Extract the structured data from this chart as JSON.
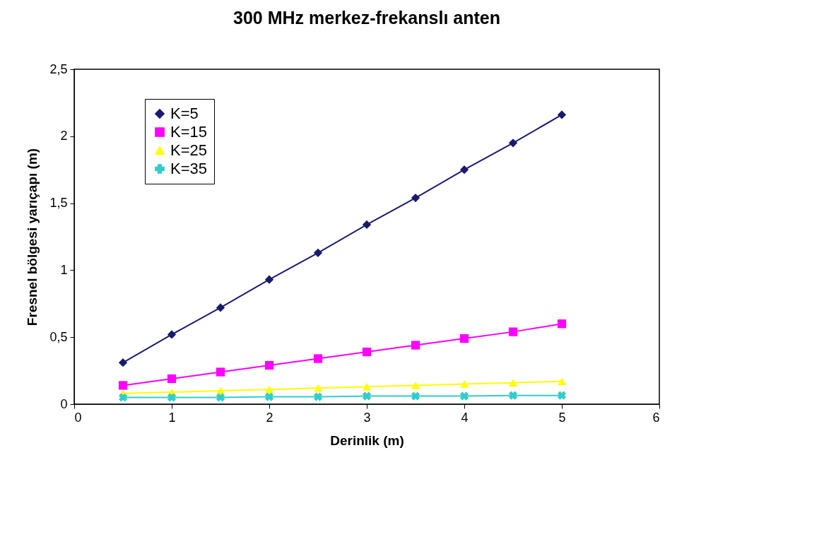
{
  "chart_data": {
    "type": "line",
    "title": "300 MHz merkez-frekanslı anten",
    "xlabel": "Derinlik (m)",
    "ylabel": "Fresnel bölgesi yarıçapı (m)",
    "x": [
      0.5,
      1,
      1.5,
      2,
      2.5,
      3,
      3.5,
      4,
      4.5,
      5
    ],
    "series": [
      {
        "name": "K=5",
        "color": "#1a1a6e",
        "marker": "diamond",
        "values": [
          0.31,
          0.52,
          0.72,
          0.93,
          1.13,
          1.34,
          1.54,
          1.75,
          1.95,
          2.16
        ]
      },
      {
        "name": "K=15",
        "color": "#ff00ff",
        "marker": "square",
        "values": [
          0.14,
          0.19,
          0.24,
          0.29,
          0.34,
          0.39,
          0.44,
          0.49,
          0.54,
          0.6
        ]
      },
      {
        "name": "K=25",
        "color": "#ffff00",
        "marker": "triangle",
        "values": [
          0.08,
          0.09,
          0.1,
          0.11,
          0.12,
          0.13,
          0.14,
          0.15,
          0.16,
          0.17
        ]
      },
      {
        "name": "K=35",
        "color": "#33cccc",
        "marker": "cross",
        "values": [
          0.05,
          0.05,
          0.05,
          0.055,
          0.055,
          0.06,
          0.06,
          0.06,
          0.065,
          0.065
        ]
      }
    ],
    "xlim": [
      0,
      6
    ],
    "xticks": [
      0,
      1,
      2,
      3,
      4,
      5,
      6
    ],
    "ylim": [
      0,
      2.5
    ],
    "yticks": [
      0,
      {
        "value": 0.5,
        "label": "0,5"
      },
      1,
      {
        "value": 1.5,
        "label": "1,5"
      },
      2,
      {
        "value": 2.5,
        "label": "2,5"
      }
    ],
    "grid": false,
    "legend": "top left"
  }
}
